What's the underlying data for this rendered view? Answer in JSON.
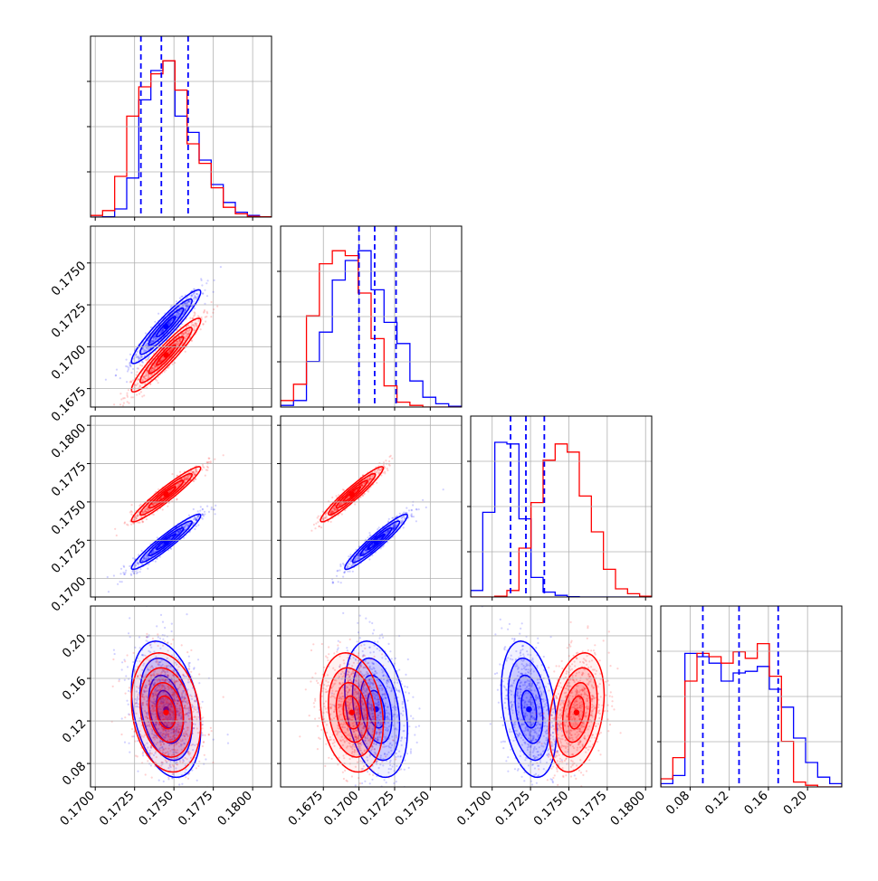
{
  "chart_data": {
    "type": "corner",
    "n_params": 4,
    "grid": true,
    "colors": {
      "series_a": "#0000ff",
      "series_b": "#ff0000",
      "quantile": "#0000ff"
    },
    "series": [
      {
        "color": "#0000ff",
        "means": [
          0.1745,
          0.1712,
          0.1724,
          0.131
        ],
        "sds": [
          0.0011,
          0.0011,
          0.0009,
          0.032
        ],
        "quantiles": [
          [
            0.1729,
            0.1742,
            0.1759
          ],
          [
            0.17,
            0.1711,
            0.1726
          ],
          [
            0.1712,
            0.1722,
            0.1734
          ],
          [
            0.093,
            0.13,
            0.17
          ]
        ],
        "hist1d": [
          [
            0,
            0.002,
            0.05,
            0.24,
            0.72,
            0.9,
            0.96,
            0.62,
            0.52,
            0.35,
            0.2,
            0.09,
            0.03,
            0.01,
            0.002
          ],
          [
            0.01,
            0.04,
            0.28,
            0.46,
            0.78,
            0.9,
            0.96,
            0.72,
            0.52,
            0.39,
            0.16,
            0.06,
            0.02,
            0.005
          ],
          [
            0.04,
            0.52,
            0.95,
            0.94,
            0.48,
            0.12,
            0.03,
            0.01,
            0.002,
            0,
            0,
            0,
            0,
            0,
            0
          ],
          [
            0.02,
            0.07,
            0.82,
            0.8,
            0.76,
            0.65,
            0.7,
            0.71,
            0.74,
            0.6,
            0.49,
            0.3,
            0.15,
            0.06,
            0.02
          ]
        ],
        "corr": [
          [
            1,
            0.94,
            0.95,
            -0.3
          ],
          [
            0.94,
            1,
            0.95,
            -0.3
          ],
          [
            0.95,
            0.95,
            1,
            -0.3
          ],
          [
            -0.3,
            -0.3,
            -0.3,
            1
          ]
        ]
      },
      {
        "color": "#ff0000",
        "means": [
          0.1745,
          0.1695,
          0.1755,
          0.128
        ],
        "sds": [
          0.0011,
          0.0011,
          0.0009,
          0.028
        ],
        "hist1d": [
          [
            0.01,
            0.04,
            0.25,
            0.62,
            0.8,
            0.88,
            0.96,
            0.78,
            0.45,
            0.33,
            0.18,
            0.06,
            0.02,
            0.005,
            0.002
          ],
          [
            0.04,
            0.14,
            0.56,
            0.88,
            0.96,
            0.93,
            0.7,
            0.42,
            0.13,
            0.03,
            0.01,
            0,
            0,
            0
          ],
          [
            0,
            0,
            0.005,
            0.04,
            0.3,
            0.58,
            0.84,
            0.94,
            0.89,
            0.62,
            0.4,
            0.17,
            0.05,
            0.02,
            0.005
          ],
          [
            0.05,
            0.18,
            0.65,
            0.82,
            0.8,
            0.76,
            0.83,
            0.79,
            0.88,
            0.68,
            0.28,
            0.03,
            0.01,
            0,
            0
          ]
        ],
        "corr": [
          [
            1,
            0.94,
            0.95,
            -0.2
          ],
          [
            0.94,
            1,
            0.95,
            -0.2
          ],
          [
            0.95,
            0.95,
            1,
            0.3
          ],
          [
            -0.2,
            -0.2,
            0.3,
            1
          ]
        ]
      }
    ],
    "axes": {
      "xlim": [
        [
          0.1697,
          0.1812
        ],
        [
          0.1645,
          0.1772
        ],
        [
          0.1686,
          0.1804
        ],
        [
          0.05,
          0.235
        ]
      ],
      "ylim_2d": [
        [
          0,
          0
        ],
        [
          0.1664,
          0.1772
        ],
        [
          0.1688,
          0.1806
        ],
        [
          0.058,
          0.228
        ]
      ],
      "x_ticks": [
        [
          "0.1700",
          "0.1725",
          "0.1750",
          "0.1775",
          "0.1800"
        ],
        [
          "0.1675",
          "0.1700",
          "0.1725",
          "0.1750"
        ],
        [
          "0.1700",
          "0.1725",
          "0.1750",
          "0.1775",
          "0.1800"
        ],
        [
          "0.08",
          "0.12",
          "0.16",
          "0.20"
        ]
      ],
      "y_ticks": [
        [],
        [
          "0.1675",
          "0.1700",
          "0.1725",
          "0.1750"
        ],
        [
          "0.1700",
          "0.1725",
          "0.1750",
          "0.1775",
          "0.1800"
        ],
        [
          "0.08",
          "0.12",
          "0.16",
          "0.20"
        ]
      ]
    }
  }
}
